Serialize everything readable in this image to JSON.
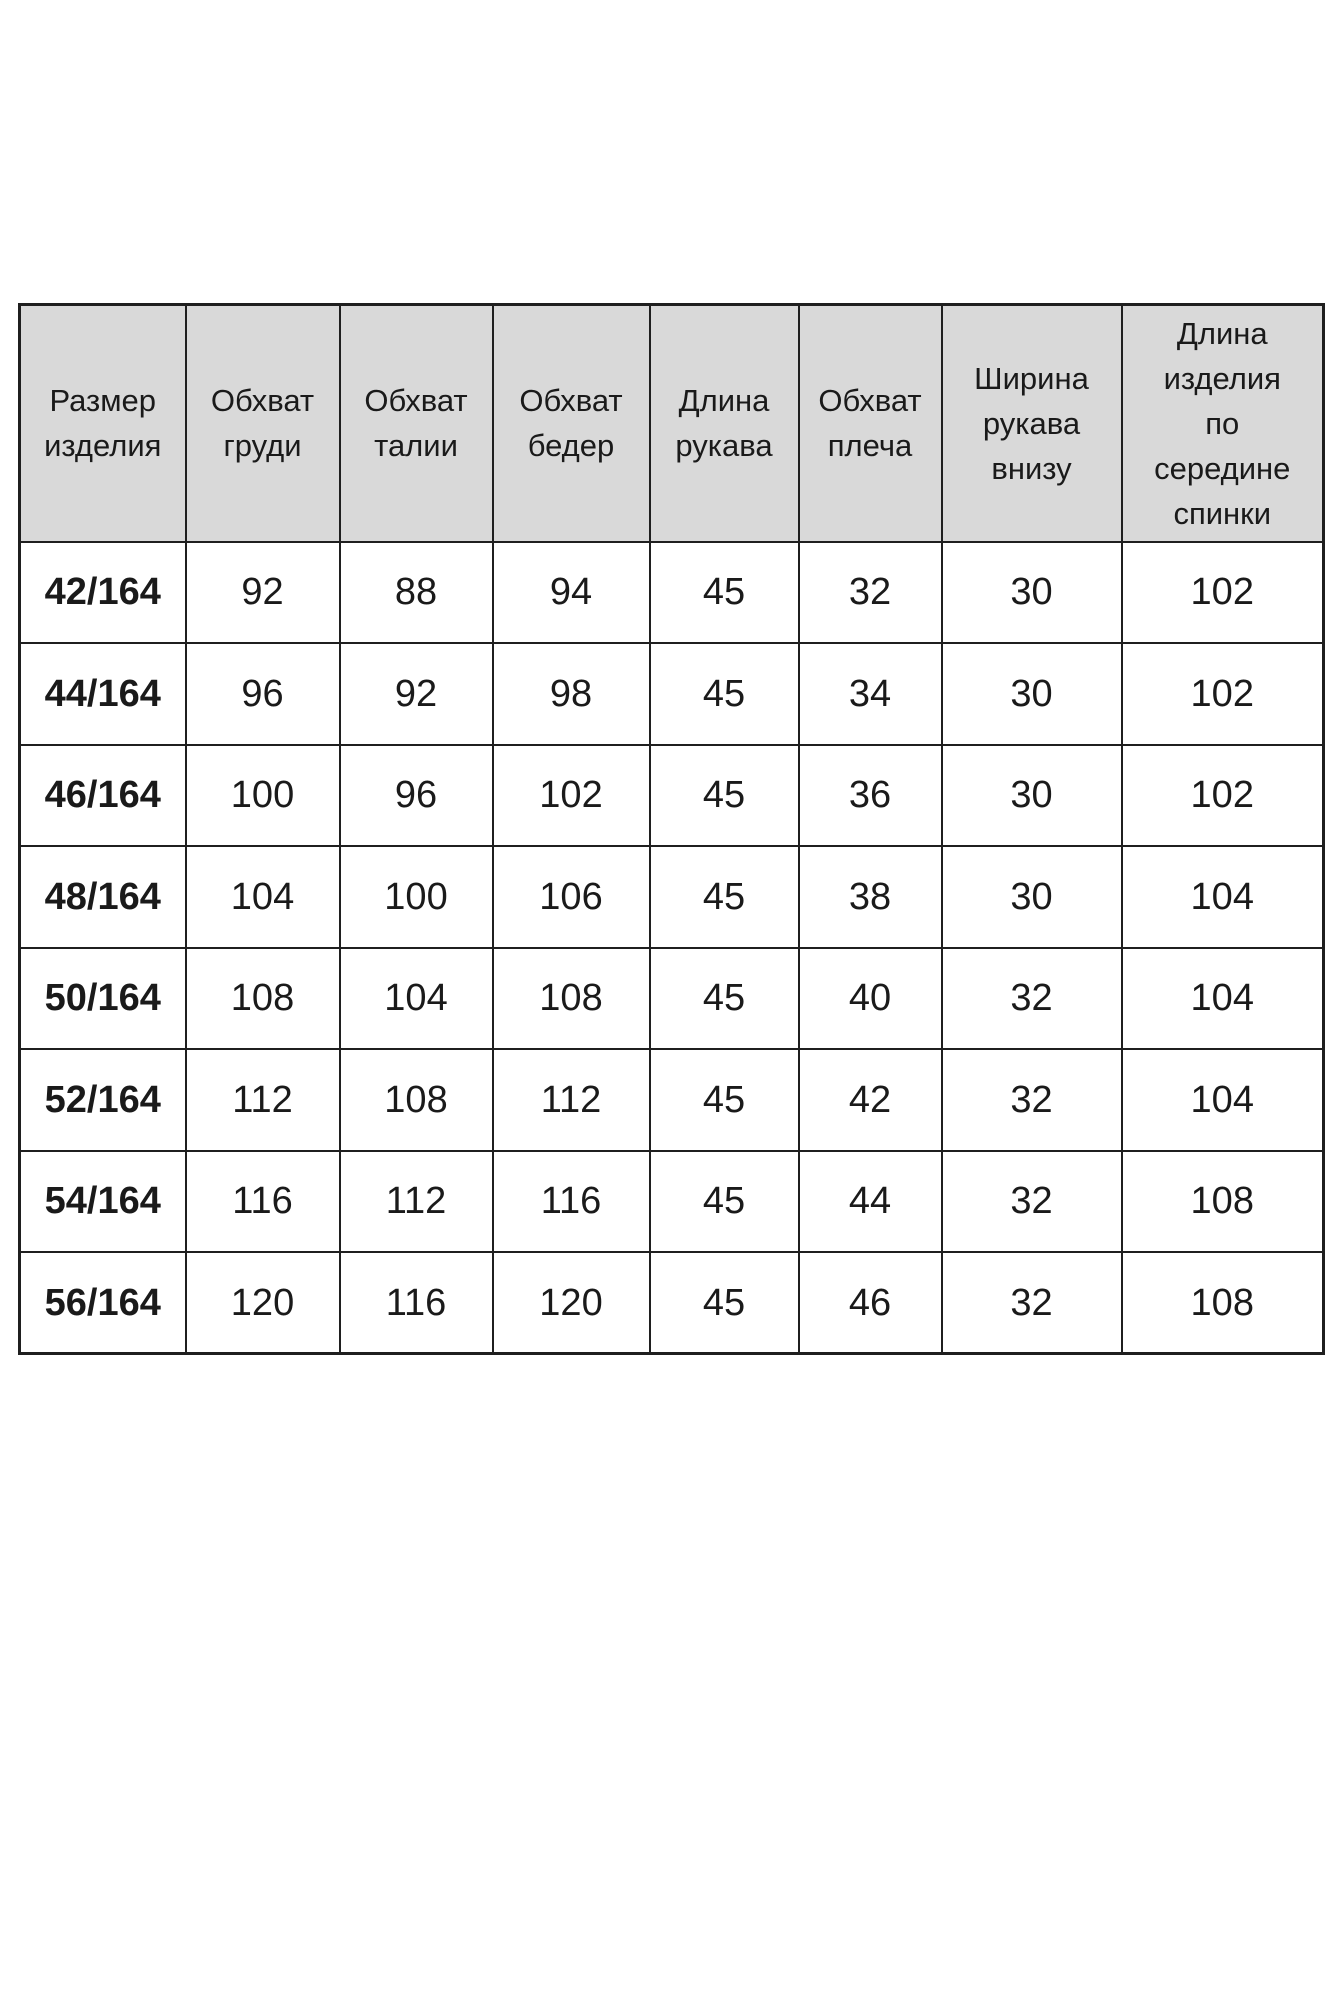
{
  "page": {
    "background": "#ffffff"
  },
  "size_table": {
    "header_bg": "#d9d9d9",
    "border_color": "#1f1f1f",
    "text_color": "#1a1a1a",
    "columns": [
      "Размер\nизделия",
      "Обхват\nгруди",
      "Обхват\nталии",
      "Обхват\nбедер",
      "Длина\nрукава",
      "Обхват\nплеча",
      "Ширина\nрукава\nвнизу",
      "Длина\nизделия\nпо\nсередине\nспинки"
    ],
    "rows": [
      {
        "size": "42/164",
        "values": [
          "92",
          "88",
          "94",
          "45",
          "32",
          "30",
          "102"
        ]
      },
      {
        "size": "44/164",
        "values": [
          "96",
          "92",
          "98",
          "45",
          "34",
          "30",
          "102"
        ]
      },
      {
        "size": "46/164",
        "values": [
          "100",
          "96",
          "102",
          "45",
          "36",
          "30",
          "102"
        ]
      },
      {
        "size": "48/164",
        "values": [
          "104",
          "100",
          "106",
          "45",
          "38",
          "30",
          "104"
        ]
      },
      {
        "size": "50/164",
        "values": [
          "108",
          "104",
          "108",
          "45",
          "40",
          "32",
          "104"
        ]
      },
      {
        "size": "52/164",
        "values": [
          "112",
          "108",
          "112",
          "45",
          "42",
          "32",
          "104"
        ]
      },
      {
        "size": "54/164",
        "values": [
          "116",
          "112",
          "116",
          "45",
          "44",
          "32",
          "108"
        ]
      },
      {
        "size": "56/164",
        "values": [
          "120",
          "116",
          "120",
          "45",
          "46",
          "32",
          "108"
        ]
      }
    ]
  }
}
